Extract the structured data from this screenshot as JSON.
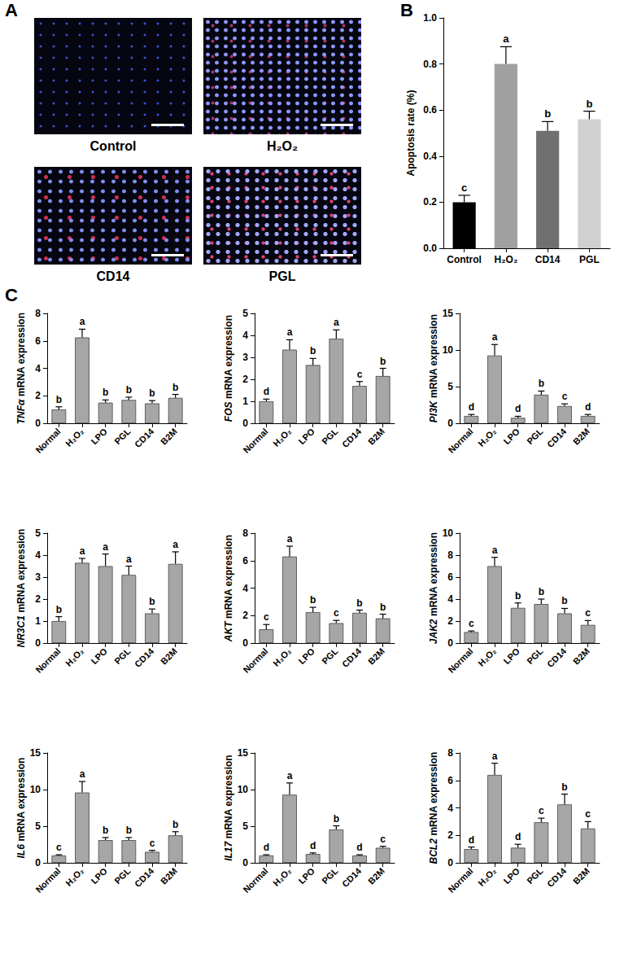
{
  "panel_letters": [
    "A",
    "B",
    "C"
  ],
  "micrographs": [
    "Control",
    "H₂O₂",
    "CD14",
    "PGL"
  ],
  "chart_data": [
    {
      "type": "bar",
      "y_label": "Apoptosis rate (%)",
      "categories": [
        "Control",
        "H₂O₂",
        "CD14",
        "PGL"
      ],
      "values": [
        0.2,
        0.8,
        0.51,
        0.56
      ],
      "errors": [
        0.03,
        0.075,
        0.04,
        0.035
      ],
      "significance": [
        "c",
        "a",
        "b",
        "b"
      ],
      "colors": [
        "#000000",
        "#a0a0a0",
        "#707070",
        "#d0d0d0"
      ],
      "ylim": [
        0,
        1.0
      ],
      "yticks": [
        {
          "value": 0,
          "label": "0.0"
        },
        {
          "value": 0.2,
          "label": "0.2"
        },
        {
          "value": 0.4,
          "label": "0.4"
        },
        {
          "value": 0.6,
          "label": "0.6"
        },
        {
          "value": 0.8,
          "label": "0.8"
        },
        {
          "value": 1.0,
          "label": "1.0"
        }
      ],
      "grid": false
    },
    {
      "type": "bar",
      "y_label": "TNFα mRNA expression",
      "categories": [
        "Normal",
        "H₂O₂",
        "LPO",
        "PGL",
        "CD14",
        "B2M"
      ],
      "values": [
        1.0,
        6.25,
        1.5,
        1.7,
        1.45,
        1.85
      ],
      "errors": [
        0.2,
        0.6,
        0.2,
        0.2,
        0.2,
        0.25
      ],
      "significance": [
        "b",
        "a",
        "b",
        "b",
        "b",
        "b"
      ],
      "color": "#a6a6a6",
      "ylim": [
        0,
        8
      ],
      "yticks": [
        0,
        2,
        4,
        6,
        8
      ],
      "grid": false
    },
    {
      "type": "bar",
      "y_label": "FOS mRNA expression",
      "categories": [
        "Normal",
        "H₂O₂",
        "LPO",
        "PGL",
        "CD14",
        "B2M"
      ],
      "values": [
        1.0,
        3.35,
        2.65,
        3.85,
        1.7,
        2.15
      ],
      "errors": [
        0.1,
        0.45,
        0.3,
        0.4,
        0.2,
        0.35
      ],
      "significance": [
        "d",
        "a",
        "b",
        "a",
        "c",
        "b"
      ],
      "color": "#a6a6a6",
      "ylim": [
        0,
        5
      ],
      "yticks": [
        0,
        1,
        2,
        3,
        4,
        5
      ],
      "grid": false
    },
    {
      "type": "bar",
      "y_label": "PI3K mRNA expression",
      "categories": [
        "Normal",
        "H₂O₂",
        "LPO",
        "PGL",
        "CD14",
        "B2M"
      ],
      "values": [
        1.0,
        9.25,
        0.75,
        3.9,
        2.35,
        1.0
      ],
      "errors": [
        0.2,
        1.5,
        0.2,
        0.5,
        0.3,
        0.2
      ],
      "significance": [
        "d",
        "a",
        "d",
        "b",
        "c",
        "d"
      ],
      "color": "#a6a6a6",
      "ylim": [
        0,
        15
      ],
      "yticks": [
        0,
        5,
        10,
        15
      ],
      "grid": false
    },
    {
      "type": "bar",
      "y_label": "NR3C1 mRNA expression",
      "categories": [
        "Normal",
        "H₂O₂",
        "LPO",
        "PGL",
        "CD14",
        "B2M"
      ],
      "values": [
        1.0,
        3.65,
        3.5,
        3.1,
        1.35,
        3.6
      ],
      "errors": [
        0.2,
        0.2,
        0.55,
        0.4,
        0.2,
        0.55
      ],
      "significance": [
        "b",
        "a",
        "a",
        "a",
        "b",
        "a"
      ],
      "color": "#a6a6a6",
      "ylim": [
        0,
        5
      ],
      "yticks": [
        0,
        1,
        2,
        3,
        4,
        5
      ],
      "grid": false
    },
    {
      "type": "bar",
      "y_label": "AKT mRNA expression",
      "categories": [
        "Normal",
        "H₂O₂",
        "LPO",
        "PGL",
        "CD14",
        "B2M"
      ],
      "values": [
        1.0,
        6.3,
        2.25,
        1.45,
        2.2,
        1.8
      ],
      "errors": [
        0.35,
        0.75,
        0.35,
        0.2,
        0.2,
        0.3
      ],
      "significance": [
        "c",
        "a",
        "b",
        "c",
        "b",
        "b"
      ],
      "color": "#a6a6a6",
      "ylim": [
        0,
        8
      ],
      "yticks": [
        0,
        2,
        4,
        6,
        8
      ],
      "grid": false
    },
    {
      "type": "bar",
      "y_label": "JAK2 mRNA expression",
      "categories": [
        "Normal",
        "H₂O₂",
        "LPO",
        "PGL",
        "CD14",
        "B2M"
      ],
      "values": [
        1.0,
        7.0,
        3.2,
        3.55,
        2.7,
        1.65
      ],
      "errors": [
        0.1,
        0.8,
        0.45,
        0.45,
        0.45,
        0.4
      ],
      "significance": [
        "c",
        "a",
        "b",
        "b",
        "b",
        "c"
      ],
      "color": "#a6a6a6",
      "ylim": [
        0,
        10
      ],
      "yticks": [
        0,
        2,
        4,
        6,
        8,
        10
      ],
      "grid": false
    },
    {
      "type": "bar",
      "y_label": "IL6 mRNA expression",
      "categories": [
        "Normal",
        "H₂O₂",
        "LPO",
        "PGL",
        "CD14",
        "B2M"
      ],
      "values": [
        1.0,
        9.6,
        3.1,
        3.1,
        1.5,
        3.75
      ],
      "errors": [
        0.1,
        1.5,
        0.35,
        0.35,
        0.2,
        0.5
      ],
      "significance": [
        "c",
        "a",
        "b",
        "b",
        "c",
        "b"
      ],
      "color": "#a6a6a6",
      "ylim": [
        0,
        15
      ],
      "yticks": [
        0,
        5,
        10,
        15
      ],
      "grid": false
    },
    {
      "type": "bar",
      "y_label": "IL17 mRNA expression",
      "categories": [
        "Normal",
        "H₂O₂",
        "LPO",
        "PGL",
        "CD14",
        "B2M"
      ],
      "values": [
        1.0,
        9.3,
        1.2,
        4.55,
        1.0,
        2.05
      ],
      "errors": [
        0.1,
        1.6,
        0.15,
        0.5,
        0.1,
        0.2
      ],
      "significance": [
        "d",
        "a",
        "d",
        "b",
        "d",
        "c"
      ],
      "color": "#a6a6a6",
      "ylim": [
        0,
        15
      ],
      "yticks": [
        0,
        5,
        10,
        15
      ],
      "grid": false
    },
    {
      "type": "bar",
      "y_label": "BCL2 mRNA expression",
      "categories": [
        "Normal",
        "H₂O₂",
        "LPO",
        "PGL",
        "CD14",
        "B2M"
      ],
      "values": [
        1.0,
        6.4,
        1.1,
        2.95,
        4.25,
        2.5
      ],
      "errors": [
        0.15,
        0.85,
        0.25,
        0.3,
        0.75,
        0.5
      ],
      "significance": [
        "d",
        "a",
        "d",
        "c",
        "b",
        "c"
      ],
      "color": "#a6a6a6",
      "ylim": [
        0,
        8
      ],
      "yticks": [
        0,
        2,
        4,
        6,
        8
      ],
      "grid": false
    }
  ]
}
